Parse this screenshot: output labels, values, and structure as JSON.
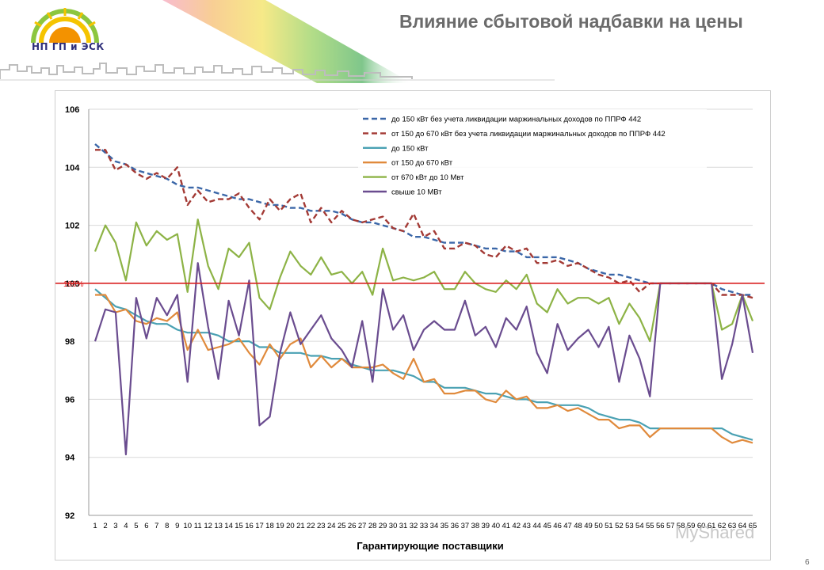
{
  "header": {
    "title": "Влияние сбытовой надбавки на цены",
    "logo_text": "НП ГП и ЭСК"
  },
  "page_number": "6",
  "watermark": "MyShared",
  "colors": {
    "series_150_no_liq": "#3b67a8",
    "series_150_670_no_liq": "#a33a35",
    "series_150": "#4aa1b3",
    "series_150_670": "#e08a3c",
    "series_670_10": "#8db346",
    "series_10": "#6a4c8f",
    "ref_line": "#d92020",
    "title_color": "#6b6b6b"
  },
  "chart_data": {
    "type": "line",
    "xlabel": "Гарантирующие поставщики",
    "ylabel": "",
    "ylim": [
      92,
      106
    ],
    "yticks": [
      92,
      94,
      96,
      98,
      100,
      102,
      104,
      106
    ],
    "ref_line": {
      "value": 100,
      "label": "100%"
    },
    "x_tick_labels": [
      "1",
      "2",
      "3",
      "4",
      "5",
      "6",
      "7",
      "8",
      "9",
      "10",
      "11",
      "12",
      "13",
      "14",
      "15",
      "16",
      "17",
      "18",
      "19",
      "20",
      "21",
      "22",
      "23",
      "24",
      "25",
      "26",
      "27",
      "28",
      "29",
      "30",
      "31",
      "32",
      "33",
      "34",
      "35",
      "36",
      "37",
      "38",
      "39",
      "40",
      "41",
      "42",
      "43",
      "44",
      "45",
      "46",
      "47",
      "48",
      "49",
      "50",
      "51",
      "52",
      "53",
      "54",
      "55",
      "56",
      "57",
      "58",
      "59",
      "60",
      "61",
      "62",
      "63",
      "64",
      "65"
    ],
    "series": [
      {
        "name": "до 150 кВт без учета ликвидации маржинальных доходов по ППРФ 442",
        "style": "dashed",
        "color_key": "series_150_no_liq",
        "values": [
          104.8,
          104.5,
          104.2,
          104.1,
          103.9,
          103.8,
          103.7,
          103.6,
          103.4,
          103.3,
          103.3,
          103.2,
          103.1,
          103.0,
          102.9,
          102.9,
          102.8,
          102.7,
          102.7,
          102.6,
          102.6,
          102.5,
          102.5,
          102.5,
          102.4,
          102.2,
          102.1,
          102.1,
          102.0,
          101.9,
          101.8,
          101.6,
          101.6,
          101.5,
          101.4,
          101.4,
          101.4,
          101.3,
          101.2,
          101.2,
          101.1,
          101.1,
          100.9,
          100.9,
          100.9,
          100.9,
          100.8,
          100.7,
          100.5,
          100.4,
          100.3,
          100.3,
          100.2,
          100.1,
          100.0,
          100.0,
          100.0,
          100.0,
          100.0,
          100.0,
          100.0,
          99.8,
          99.7,
          99.6,
          99.6
        ]
      },
      {
        "name": "от 150 до 670 кВт без учета ликвидации маржинальных доходов по ППРФ 442",
        "style": "dashed",
        "color_key": "series_150_670_no_liq",
        "values": [
          104.6,
          104.6,
          103.9,
          104.1,
          103.8,
          103.6,
          103.8,
          103.6,
          104.0,
          102.7,
          103.2,
          102.8,
          102.9,
          102.9,
          103.1,
          102.6,
          102.2,
          102.9,
          102.5,
          102.9,
          103.1,
          102.1,
          102.6,
          102.1,
          102.5,
          102.2,
          102.1,
          102.2,
          102.3,
          101.9,
          101.8,
          102.4,
          101.6,
          101.8,
          101.2,
          101.2,
          101.4,
          101.3,
          101.0,
          100.9,
          101.3,
          101.1,
          101.2,
          100.7,
          100.7,
          100.8,
          100.6,
          100.7,
          100.5,
          100.3,
          100.2,
          100.0,
          100.1,
          99.7,
          100.0,
          100.0,
          100.0,
          100.0,
          100.0,
          100.0,
          100.0,
          99.6,
          99.6,
          99.6,
          99.5
        ]
      },
      {
        "name": "до 150 кВт",
        "style": "solid",
        "color_key": "series_150",
        "values": [
          99.8,
          99.5,
          99.2,
          99.1,
          98.9,
          98.7,
          98.6,
          98.6,
          98.4,
          98.3,
          98.3,
          98.3,
          98.2,
          98.0,
          98.0,
          98.0,
          97.8,
          97.8,
          97.6,
          97.6,
          97.6,
          97.5,
          97.5,
          97.4,
          97.4,
          97.2,
          97.1,
          97.0,
          97.0,
          97.0,
          96.9,
          96.8,
          96.6,
          96.6,
          96.4,
          96.4,
          96.4,
          96.3,
          96.2,
          96.2,
          96.1,
          96.0,
          96.0,
          95.9,
          95.9,
          95.8,
          95.8,
          95.8,
          95.7,
          95.5,
          95.4,
          95.3,
          95.3,
          95.2,
          95.0,
          95.0,
          95.0,
          95.0,
          95.0,
          95.0,
          95.0,
          95.0,
          94.8,
          94.7,
          94.6
        ]
      },
      {
        "name": "от 150 до 670 кВт",
        "style": "solid",
        "color_key": "series_150_670",
        "values": [
          99.6,
          99.6,
          99.0,
          99.1,
          98.7,
          98.6,
          98.8,
          98.7,
          99.0,
          97.7,
          98.4,
          97.7,
          97.8,
          97.9,
          98.1,
          97.6,
          97.2,
          97.9,
          97.4,
          97.9,
          98.1,
          97.1,
          97.5,
          97.1,
          97.4,
          97.1,
          97.1,
          97.1,
          97.2,
          96.9,
          96.7,
          97.4,
          96.6,
          96.7,
          96.2,
          96.2,
          96.3,
          96.3,
          96.0,
          95.9,
          96.3,
          96.0,
          96.1,
          95.7,
          95.7,
          95.8,
          95.6,
          95.7,
          95.5,
          95.3,
          95.3,
          95.0,
          95.1,
          95.1,
          94.7,
          95.0,
          95.0,
          95.0,
          95.0,
          95.0,
          95.0,
          94.7,
          94.5,
          94.6,
          94.5
        ]
      },
      {
        "name": "от 670 кВт до 10 Мвт",
        "style": "solid",
        "color_key": "series_670_10",
        "values": [
          101.1,
          102.0,
          101.4,
          100.1,
          102.1,
          101.3,
          101.8,
          101.5,
          101.7,
          99.7,
          102.2,
          100.6,
          99.8,
          101.2,
          100.9,
          101.4,
          99.5,
          99.1,
          100.2,
          101.1,
          100.6,
          100.3,
          100.9,
          100.3,
          100.4,
          100.0,
          100.4,
          99.6,
          101.2,
          100.1,
          100.2,
          100.1,
          100.2,
          100.4,
          99.8,
          99.8,
          100.4,
          100.0,
          99.8,
          99.7,
          100.1,
          99.8,
          100.3,
          99.3,
          99.0,
          99.8,
          99.3,
          99.5,
          99.5,
          99.3,
          99.5,
          98.6,
          99.3,
          98.8,
          98.0,
          100.0,
          100.0,
          100.0,
          100.0,
          100.0,
          100.0,
          98.4,
          98.6,
          99.6,
          98.7
        ]
      },
      {
        "name": "свыше 10 МВт",
        "style": "solid",
        "color_key": "series_10",
        "values": [
          98.0,
          99.1,
          99.0,
          94.1,
          99.5,
          98.1,
          99.5,
          98.9,
          99.6,
          96.6,
          100.7,
          98.5,
          96.7,
          99.4,
          98.2,
          100.1,
          95.1,
          95.4,
          97.6,
          99.0,
          97.9,
          98.4,
          98.9,
          98.1,
          97.7,
          97.1,
          98.7,
          96.6,
          99.8,
          98.4,
          98.9,
          97.7,
          98.4,
          98.7,
          98.4,
          98.4,
          99.4,
          98.2,
          98.5,
          97.8,
          98.8,
          98.4,
          99.2,
          97.6,
          96.9,
          98.6,
          97.7,
          98.1,
          98.4,
          97.8,
          98.5,
          96.6,
          98.2,
          97.4,
          96.1,
          100.0,
          100.0,
          100.0,
          100.0,
          100.0,
          100.0,
          96.7,
          97.9,
          99.6,
          97.6
        ]
      }
    ]
  }
}
